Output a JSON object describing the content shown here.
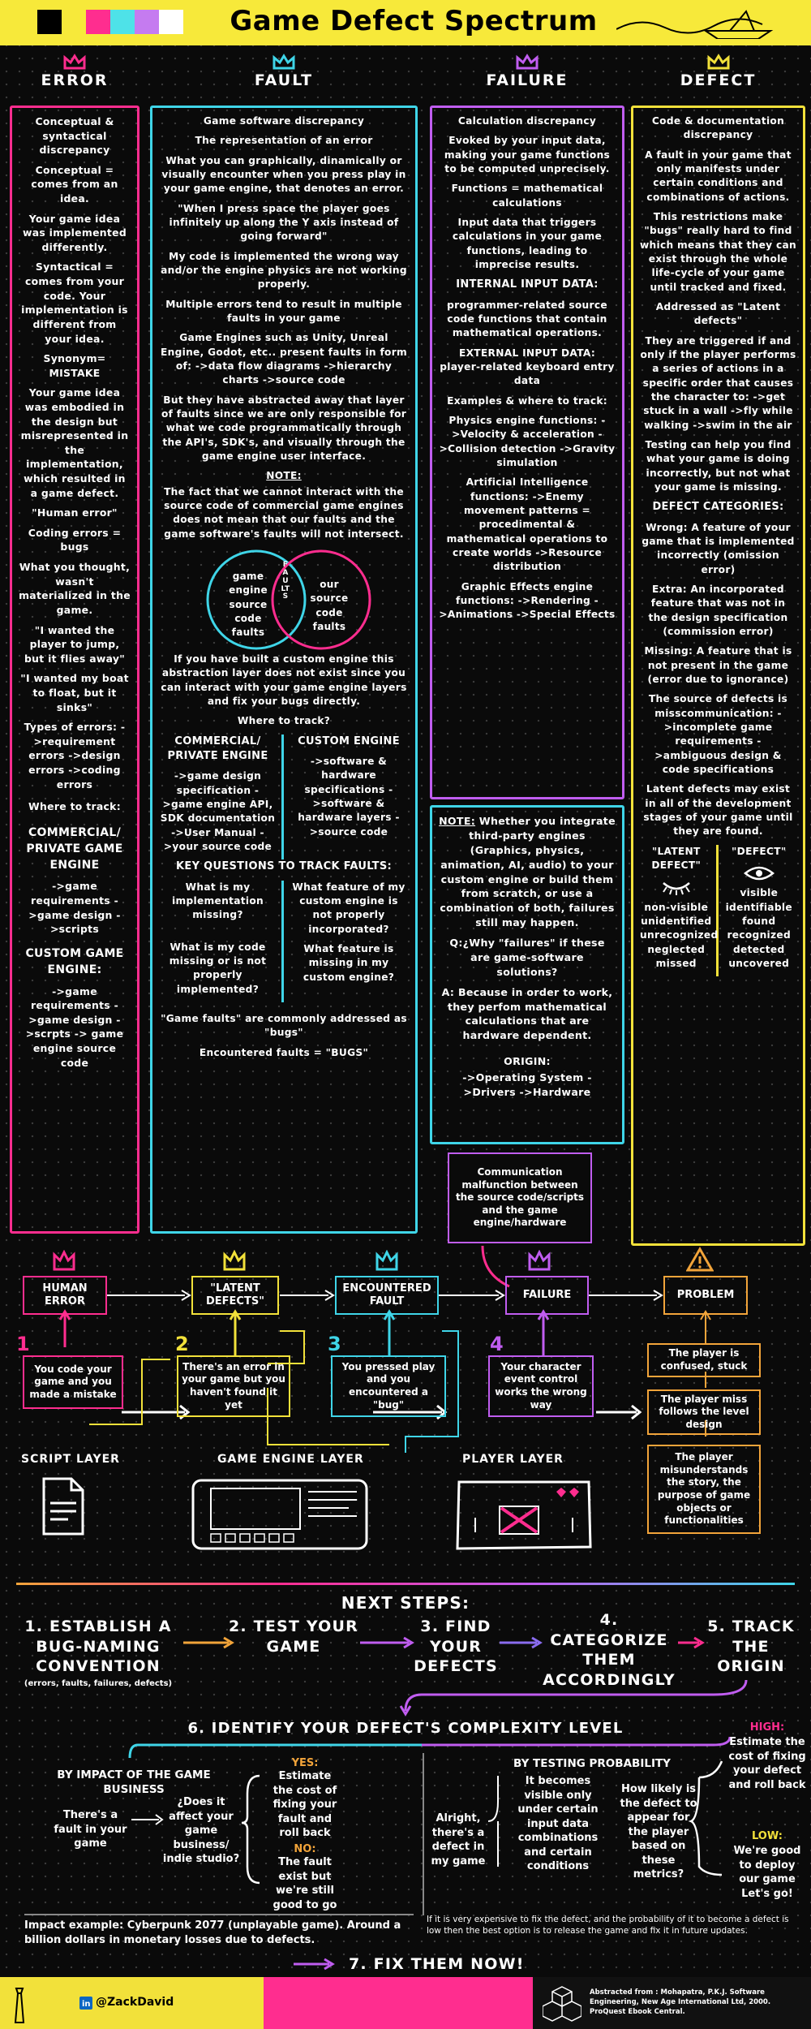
{
  "title": "Game Defect Spectrum",
  "colors": {
    "pink": "#ff2d8f",
    "cyan": "#3fd5e8",
    "purple": "#c05df0",
    "yellow": "#f2e13a",
    "header_bg": "#f7e93a"
  },
  "columns": {
    "error": {
      "title": "ERROR",
      "paragraphs": [
        "Conceptual & syntactical discrepancy",
        "Conceptual = comes from an idea.",
        "Your game idea was implemented differently.",
        "Syntactical = comes from your code. Your implementation is different from your idea.",
        "Synonym= MISTAKE",
        "Your game idea was embodied in the design but misrepresented in the implementation, which resulted in a game defect.",
        "\"Human error\"",
        "Coding errors = bugs",
        "What you thought, wasn't materialized in the game.",
        "\"I wanted the player to jump, but it flies away\"",
        "\"I wanted my boat to float, but it sinks\"",
        "Types of errors: ->requirement errors ->design errors ->coding errors",
        "Where to track:",
        "COMMERCIAL/ PRIVATE GAME ENGINE",
        "->game requirements ->game design ->scripts",
        "CUSTOM GAME ENGINE:",
        "->game requirements ->game design ->scrpts -> game engine source code"
      ]
    },
    "fault": {
      "title": "FAULT",
      "paragraphs": [
        "Game software discrepancy",
        "The representation of an error",
        "What you can graphically, dinamically or visually encounter when you press play in your game engine, that denotes an error.",
        "\"When I press space the player goes infinitely up along the Y axis instead of going forward\"",
        "My code is implemented the wrong way and/or the engine physics are not working properly.",
        "Multiple errors tend to result in multiple faults in your game",
        "Game Engines such as Unity, Unreal Engine, Godot, etc.. present faults in form of: ->data flow diagrams ->hierarchy charts ->source code",
        "But they have abstracted away that layer of faults since we are only responsible for what we code programmatically through the API's, SDK's, and visually through the game engine user interface.",
        "NOTE:",
        "The fact that we cannot interact with the source code of commercial game engines does not mean that our faults and the game software's faults will not intersect."
      ],
      "venn_left": "game engine source code faults",
      "venn_mid": "FAULTS",
      "venn_right": "our source code faults",
      "paragraphs2": [
        "If you have built a custom engine this abstraction layer does not exist since you can interact with your game engine layers and fix your bugs directly.",
        "Where to track?"
      ],
      "commercial_title": "COMMERCIAL/ PRIVATE ENGINE",
      "commercial_items": "->game design specification ->game engine API, SDK documentation ->User Manual ->your source code",
      "custom_title": "CUSTOM ENGINE",
      "custom_items": "->software & hardware specifications ->software & hardware layers ->source code",
      "questions_title": "KEY QUESTIONS TO TRACK FAULTS:",
      "q_left_1": "What is my implementation missing?",
      "q_right_1": "What feature of my custom engine is not properly incorporated?",
      "q_left_2": "What is my code missing or is not properly implemented?",
      "q_right_2": "What feature is missing in my custom engine?",
      "footer_1": "\"Game faults\" are commonly addressed as \"bugs\"",
      "footer_2": "Encountered faults = \"BUGS\""
    },
    "failure": {
      "title": "FAILURE",
      "paragraphs": [
        "Calculation discrepancy",
        "Evoked by your input data, making your game functions to be computed unprecisely.",
        "Functions = mathematical calculations",
        "Input data that triggers calculations in your game functions, leading to imprecise results.",
        "INTERNAL INPUT DATA:",
        "programmer-related source code functions that contain mathematical operations.",
        "EXTERNAL INPUT DATA: player-related keyboard entry data",
        "Examples & where to track:",
        "Physics engine functions: ->Velocity & acceleration ->Collision detection ->Gravity simulation",
        "Artificial Intelligence functions: ->Enemy movement patterns = procedimental & mathematical operations to create worlds ->Resource distribution",
        "Graphic Effects engine functions: ->Rendering ->Animations ->Special Effects"
      ],
      "note_title": "NOTE:",
      "note_body": "Whether you integrate third-party engines (Graphics, physics, animation, AI, audio) to your custom engine or build them from scratch, or use a combination of both, failures still may happen.",
      "q": "Q:¿Why \"failures\" if these are game-software solutions?",
      "a": "A: Because in order to work, they perfom mathematical calculations that are hardware dependent.",
      "origin_title": "ORIGIN:",
      "origin_items": "->Operating System ->Drivers ->Hardware"
    },
    "defect": {
      "title": "DEFECT",
      "paragraphs": [
        "Code & documentation discrepancy",
        "A fault in your game that only manifests under certain conditions and combinations of actions.",
        "This restrictions make \"bugs\" really hard to find which means that they can exist through the whole life-cycle of your game until tracked and fixed.",
        "Addressed as \"Latent defects\"",
        "They are triggered if and only if the player performs a series of actions in a specific order that causes the character to: ->get stuck in a wall ->fly while walking ->swim in the air",
        "Testing can help you find what your game is doing incorrectly, but not what your game is missing.",
        "DEFECT CATEGORIES:",
        "Wrong: A feature of your game that is implemented incorrectly (omission error)",
        "Extra: An incorporated feature that was not in the design specification (commission error)",
        "Missing: A feature that is not present in the game (error due to ignorance)",
        "The source of defects is misscommunication: ->incomplete game requirements ->ambiguous design & code specifications",
        "Latent defects may exist in all of the development stages of your game until they are found."
      ],
      "latent_title": "\"LATENT DEFECT\"",
      "latent_words": "non-visible unidentified unrecognized neglected missed",
      "defect_title": "\"DEFECT\"",
      "defect_words": "visible identifiable found recognized detected uncovered"
    }
  },
  "flow": {
    "communication": "Communication malfunction between the source code/scripts and the game engine/hardware",
    "nodes": [
      "HUMAN ERROR",
      "\"LATENT DEFECTS\"",
      "ENCOUNTERED FAULT",
      "FAILURE",
      "PROBLEM"
    ],
    "step_nums": [
      "1",
      "2",
      "3",
      "4"
    ],
    "steps": [
      "You code your game and you made a mistake",
      "There's an error in your game but you haven't found it yet",
      "You pressed play and you encountered a \"bug\"",
      "Your character event control works the wrong way"
    ],
    "problems": [
      "The player is confused, stuck",
      "The player miss follows the level design",
      "The player misunderstands the story, the purpose of game objects or functionalities"
    ],
    "layers": [
      "SCRIPT LAYER",
      "GAME ENGINE LAYER",
      "PLAYER LAYER"
    ]
  },
  "next_steps": {
    "title": "NEXT STEPS:",
    "items": [
      "1. ESTABLISH A BUG-NAMING CONVENTION",
      "2. TEST YOUR GAME",
      "3. FIND YOUR DEFECTS",
      "4. CATEGORIZE THEM ACCORDINGLY",
      "5. TRACK THE ORIGIN"
    ],
    "item1_sub": "(errors, faults, failures, defects)",
    "six_title": "6. IDENTIFY YOUR DEFECT'S COMPLEXITY LEVEL",
    "impact_title": "BY IMPACT OF THE GAME BUSINESS",
    "impact_left": "There's a fault in your game",
    "impact_q": "¿Does it affect your game business/ indie studio?",
    "yes_label": "YES:",
    "yes_text": "Estimate the cost of fixing your fault and roll back",
    "no_label": "NO:",
    "no_text": "The fault exist but we're still good to go",
    "prob_title": "BY TESTING PROBABILITY",
    "prob_left": "Alright, there's a defect in my game",
    "prob_mid": "It becomes visible only under certain input data combinations and certain conditions",
    "prob_q": "How likely is the defect to appear for the player based on these metrics?",
    "high_label": "HIGH:",
    "high_text": "Estimate the cost of fixing your defect and roll back",
    "low_label": "LOW:",
    "low_text": "We're good to deploy our game Let's go!",
    "impact_example": "Impact example: Cyberpunk 2077 (unplayable game). Around a billion dollars in monetary losses due to defects.",
    "prob_note": "If it is very expensive to fix the defect, and the probability of it to become a defect is low then the best option is to release the game and fix it in future updates.",
    "seven": "7. FIX THEM NOW!"
  },
  "footer": {
    "handle": "@ZackDavid",
    "credit": "Abstracted from : Mohapatra, P.K.J. Software Engineering, New Age International Ltd, 2000. ProQuest Ebook Central."
  }
}
